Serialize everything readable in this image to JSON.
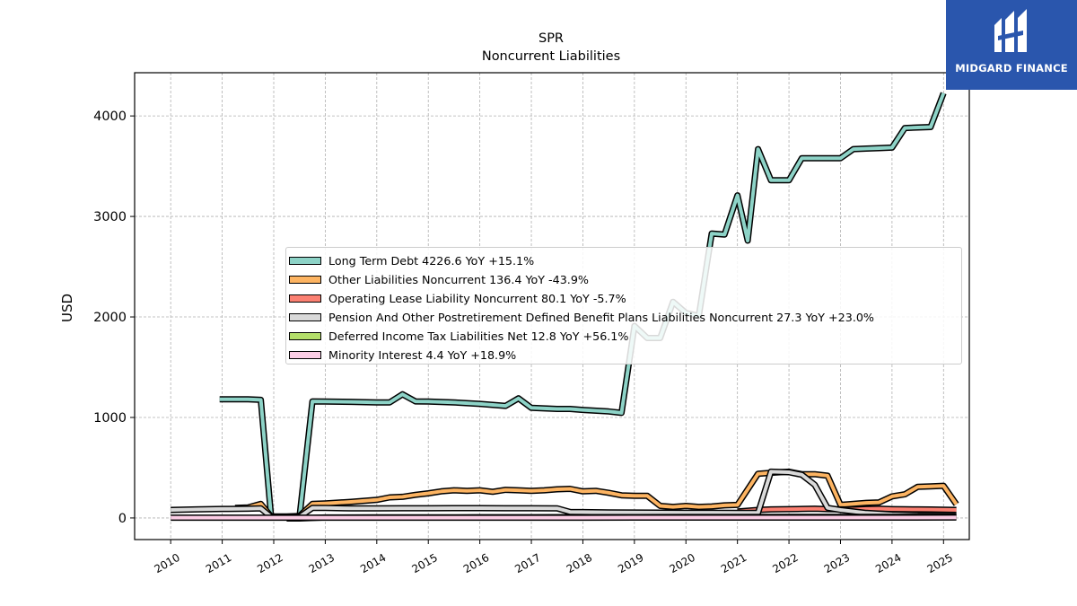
{
  "brand": {
    "name": "MIDGARD FINANCE",
    "color": "#2a56ad"
  },
  "chart_data": {
    "type": "line",
    "title": "SPR",
    "subtitle": "Noncurrent  Liabilities",
    "ylabel": "USD",
    "xlabel": "",
    "xlim": [
      2009.3,
      2025.5
    ],
    "ylim": [
      -215,
      4430
    ],
    "yticks": [
      0,
      1000,
      2000,
      3000,
      4000
    ],
    "xticks": [
      "2010",
      "2011",
      "2012",
      "2013",
      "2014",
      "2015",
      "2016",
      "2017",
      "2018",
      "2019",
      "2020",
      "2021",
      "2022",
      "2023",
      "2024",
      "2025"
    ],
    "grid": true,
    "legend_position": "center-right",
    "series": [
      {
        "name": "Long Term Debt",
        "legend": "Long Term Debt  4226.6 YoY +15.1%",
        "color": "#8dd3c7",
        "points": [
          [
            2010.95,
            1180
          ],
          [
            2011.25,
            1180
          ],
          [
            2011.5,
            1180
          ],
          [
            2011.75,
            1175
          ],
          [
            2011.95,
            10
          ],
          [
            2012.25,
            10
          ],
          [
            2012.5,
            10
          ],
          [
            2012.75,
            1160
          ],
          [
            2013.0,
            1158
          ],
          [
            2013.5,
            1155
          ],
          [
            2014.0,
            1150
          ],
          [
            2014.25,
            1150
          ],
          [
            2014.5,
            1230
          ],
          [
            2014.75,
            1160
          ],
          [
            2015.0,
            1158
          ],
          [
            2015.5,
            1150
          ],
          [
            2016.0,
            1135
          ],
          [
            2016.5,
            1115
          ],
          [
            2016.75,
            1190
          ],
          [
            2017.0,
            1095
          ],
          [
            2017.5,
            1085
          ],
          [
            2017.75,
            1085
          ],
          [
            2018.0,
            1075
          ],
          [
            2018.5,
            1060
          ],
          [
            2018.75,
            1045
          ],
          [
            2019.0,
            1910
          ],
          [
            2019.25,
            1790
          ],
          [
            2019.5,
            1790
          ],
          [
            2019.75,
            2150
          ],
          [
            2020.0,
            2040
          ],
          [
            2020.25,
            2010
          ],
          [
            2020.5,
            2830
          ],
          [
            2020.75,
            2820
          ],
          [
            2021.0,
            3210
          ],
          [
            2021.2,
            2760
          ],
          [
            2021.4,
            3670
          ],
          [
            2021.65,
            3360
          ],
          [
            2022.0,
            3360
          ],
          [
            2022.25,
            3580
          ],
          [
            2022.5,
            3580
          ],
          [
            2022.75,
            3580
          ],
          [
            2023.0,
            3580
          ],
          [
            2023.25,
            3670
          ],
          [
            2023.5,
            3675
          ],
          [
            2023.75,
            3680
          ],
          [
            2024.0,
            3685
          ],
          [
            2024.25,
            3880
          ],
          [
            2024.5,
            3885
          ],
          [
            2024.75,
            3890
          ],
          [
            2025.0,
            4226.6
          ]
        ]
      },
      {
        "name": "Other Liabilities Noncurrent",
        "legend": "Other Liabilities Noncurrent  136.4 YoY -43.9%",
        "color": "#fdb462",
        "points": [
          [
            2011.25,
            100
          ],
          [
            2011.5,
            105
          ],
          [
            2011.75,
            140
          ],
          [
            2011.95,
            15
          ],
          [
            2012.25,
            15
          ],
          [
            2012.5,
            20
          ],
          [
            2012.75,
            140
          ],
          [
            2013.0,
            145
          ],
          [
            2013.5,
            160
          ],
          [
            2014.0,
            180
          ],
          [
            2014.25,
            205
          ],
          [
            2014.5,
            210
          ],
          [
            2014.75,
            230
          ],
          [
            2015.0,
            245
          ],
          [
            2015.25,
            265
          ],
          [
            2015.5,
            275
          ],
          [
            2015.75,
            270
          ],
          [
            2016.0,
            275
          ],
          [
            2016.25,
            260
          ],
          [
            2016.5,
            280
          ],
          [
            2016.75,
            275
          ],
          [
            2017.0,
            270
          ],
          [
            2017.25,
            275
          ],
          [
            2017.5,
            285
          ],
          [
            2017.75,
            290
          ],
          [
            2018.0,
            265
          ],
          [
            2018.25,
            270
          ],
          [
            2018.5,
            250
          ],
          [
            2018.75,
            225
          ],
          [
            2019.0,
            220
          ],
          [
            2019.25,
            220
          ],
          [
            2019.5,
            120
          ],
          [
            2019.75,
            110
          ],
          [
            2020.0,
            120
          ],
          [
            2020.25,
            110
          ],
          [
            2020.5,
            115
          ],
          [
            2020.75,
            125
          ],
          [
            2021.0,
            130
          ],
          [
            2021.4,
            440
          ],
          [
            2021.65,
            450
          ],
          [
            2022.0,
            460
          ],
          [
            2022.25,
            435
          ],
          [
            2022.5,
            435
          ],
          [
            2022.75,
            420
          ],
          [
            2023.0,
            130
          ],
          [
            2023.25,
            140
          ],
          [
            2023.5,
            150
          ],
          [
            2023.75,
            155
          ],
          [
            2024.0,
            215
          ],
          [
            2024.25,
            235
          ],
          [
            2024.5,
            310
          ],
          [
            2024.75,
            315
          ],
          [
            2025.0,
            320
          ],
          [
            2025.25,
            136.4
          ]
        ]
      },
      {
        "name": "Operating Lease Liability Noncurrent",
        "legend": "Operating Lease Liability Noncurrent  80.1 YoY -5.7%",
        "color": "#fb8072",
        "points": [
          [
            2021.0,
            65
          ],
          [
            2021.4,
            80
          ],
          [
            2021.65,
            85
          ],
          [
            2022.0,
            88
          ],
          [
            2022.25,
            90
          ],
          [
            2022.5,
            92
          ],
          [
            2022.75,
            88
          ],
          [
            2023.0,
            85
          ],
          [
            2023.25,
            84
          ],
          [
            2023.5,
            90
          ],
          [
            2023.75,
            92
          ],
          [
            2024.0,
            88
          ],
          [
            2024.25,
            86
          ],
          [
            2024.5,
            85
          ],
          [
            2024.75,
            84
          ],
          [
            2025.0,
            82
          ],
          [
            2025.25,
            80.1
          ]
        ]
      },
      {
        "name": "Pension And Other Postretirement Defined Benefit Plans Liabilities Noncurrent",
        "legend": "Pension And Other Postretirement Defined Benefit Plans Liabilities Noncurrent  27.3 YoY +23.0%",
        "color": "#d9d9d9",
        "points": [
          [
            2010.0,
            80
          ],
          [
            2010.5,
            85
          ],
          [
            2011.0,
            90
          ],
          [
            2011.5,
            92
          ],
          [
            2011.75,
            95
          ],
          [
            2011.95,
            10
          ],
          [
            2012.5,
            10
          ],
          [
            2012.75,
            100
          ],
          [
            2013.0,
            100
          ],
          [
            2013.5,
            95
          ],
          [
            2014.0,
            95
          ],
          [
            2014.5,
            97
          ],
          [
            2015.0,
            97
          ],
          [
            2015.5,
            98
          ],
          [
            2016.0,
            98
          ],
          [
            2016.5,
            97
          ],
          [
            2017.0,
            97
          ],
          [
            2017.5,
            96
          ],
          [
            2017.75,
            60
          ],
          [
            2018.0,
            58
          ],
          [
            2018.5,
            55
          ],
          [
            2019.0,
            54
          ],
          [
            2019.5,
            53
          ],
          [
            2020.0,
            52
          ],
          [
            2020.5,
            52
          ],
          [
            2021.0,
            50
          ],
          [
            2021.4,
            50
          ],
          [
            2021.65,
            460
          ],
          [
            2022.0,
            455
          ],
          [
            2022.25,
            430
          ],
          [
            2022.5,
            330
          ],
          [
            2022.75,
            100
          ],
          [
            2023.0,
            80
          ],
          [
            2023.5,
            50
          ],
          [
            2024.0,
            35
          ],
          [
            2024.5,
            28
          ],
          [
            2025.0,
            27
          ],
          [
            2025.25,
            27.3
          ]
        ]
      },
      {
        "name": "Deferred Income Tax Liabilities Net",
        "legend": "Deferred Income Tax Liabilities Net  12.8 YoY +56.1%",
        "color": "#b3de69",
        "points": [
          [
            2012.25,
            -5
          ],
          [
            2012.5,
            -5
          ],
          [
            2013.0,
            5
          ],
          [
            2014.0,
            6
          ],
          [
            2015.0,
            6
          ],
          [
            2016.0,
            7
          ],
          [
            2017.0,
            7
          ],
          [
            2018.0,
            8
          ],
          [
            2019.0,
            8
          ],
          [
            2020.0,
            9
          ],
          [
            2021.0,
            9
          ],
          [
            2022.0,
            10
          ],
          [
            2023.0,
            11
          ],
          [
            2024.0,
            11
          ],
          [
            2025.25,
            12.8
          ]
        ]
      },
      {
        "name": "Minority Interest",
        "legend": "Minority Interest  4.4 YoY +18.9%",
        "color": "#fccde5",
        "points": [
          [
            2010.0,
            3
          ],
          [
            2011.0,
            3
          ],
          [
            2012.0,
            3
          ],
          [
            2013.0,
            3
          ],
          [
            2014.0,
            3
          ],
          [
            2015.0,
            3
          ],
          [
            2016.0,
            3
          ],
          [
            2017.0,
            3
          ],
          [
            2018.0,
            3
          ],
          [
            2019.0,
            4
          ],
          [
            2020.0,
            4
          ],
          [
            2021.0,
            4
          ],
          [
            2022.0,
            4
          ],
          [
            2023.0,
            4
          ],
          [
            2024.0,
            4
          ],
          [
            2025.25,
            4.4
          ]
        ]
      }
    ]
  }
}
